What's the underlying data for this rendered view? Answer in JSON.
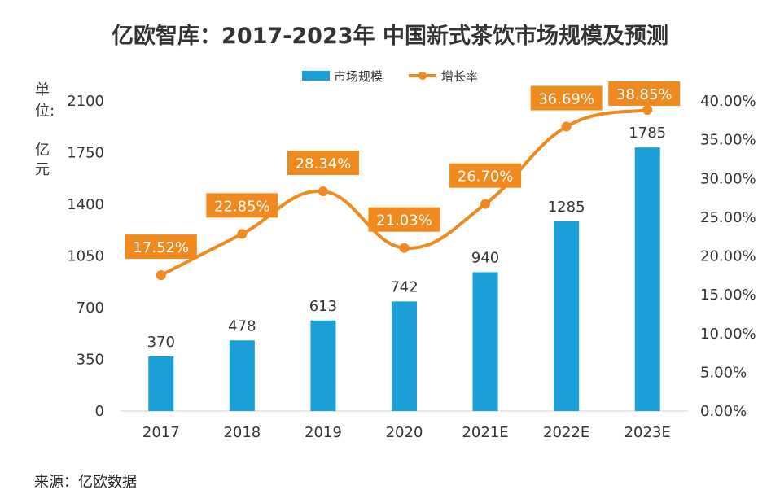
{
  "header": {
    "title": "亿欧智库：2017-2023年 中国新式茶饮市场规模及预测"
  },
  "footer": {
    "source": "来源：亿欧数据"
  },
  "colors": {
    "bar": "#1a9fd6",
    "line": "#f08a1e",
    "label_bg": "#f08a1e"
  },
  "chart_data": {
    "type": "bar",
    "title": "亿欧智库：2017-2023年 中国新式茶饮市场规模及预测",
    "categories": [
      "2017",
      "2018",
      "2019",
      "2020",
      "2021E",
      "2022E",
      "2023E"
    ],
    "series": [
      {
        "name": "市场规模",
        "type": "bar",
        "axis": "left",
        "values": [
          370,
          478,
          613,
          742,
          940,
          1285,
          1785
        ],
        "labels": [
          "370",
          "478",
          "613",
          "742",
          "940",
          "1285",
          "1785"
        ]
      },
      {
        "name": "增长率",
        "type": "line",
        "axis": "right",
        "values": [
          17.52,
          22.85,
          28.34,
          21.03,
          26.7,
          36.69,
          38.85
        ],
        "labels": [
          "17.52%",
          "22.85%",
          "28.34%",
          "21.03%",
          "26.70%",
          "36.69%",
          "38.85%"
        ]
      }
    ],
    "left_axis": {
      "unit_label": [
        "单",
        "位:",
        "亿",
        "元"
      ],
      "ylim": [
        0,
        2100
      ],
      "ticks": [
        "0",
        "350",
        "700",
        "1050",
        "1400",
        "1750",
        "2100"
      ]
    },
    "right_axis": {
      "ylim": [
        0,
        40
      ],
      "ticks": [
        "0.00%",
        "5.00%",
        "10.00%",
        "15.00%",
        "20.00%",
        "25.00%",
        "30.00%",
        "35.00%",
        "40.00%"
      ]
    },
    "legend": {
      "position": "top-center"
    },
    "grid": false
  }
}
